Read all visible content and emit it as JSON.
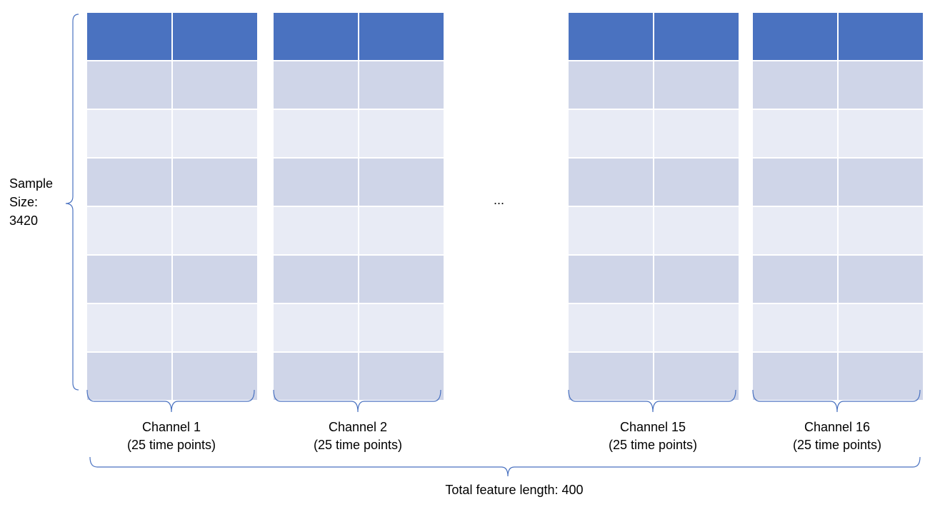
{
  "sample_size": {
    "line1": "Sample",
    "line2": "Size:",
    "line3": "3420"
  },
  "ellipsis": "...",
  "total_feature_length": "Total feature length: 400",
  "channels": [
    {
      "name": "Channel 1",
      "points": "(25 time points)"
    },
    {
      "name": "Channel 2",
      "points": "(25 time points)"
    },
    {
      "name": "Channel 15",
      "points": "(25 time points)"
    },
    {
      "name": "Channel 16",
      "points": "(25 time points)"
    }
  ],
  "colors": {
    "header": "#4a72c0",
    "row_dark": "#cfd5e8",
    "row_light": "#e8ebf5",
    "brace": "#4a72c0"
  }
}
